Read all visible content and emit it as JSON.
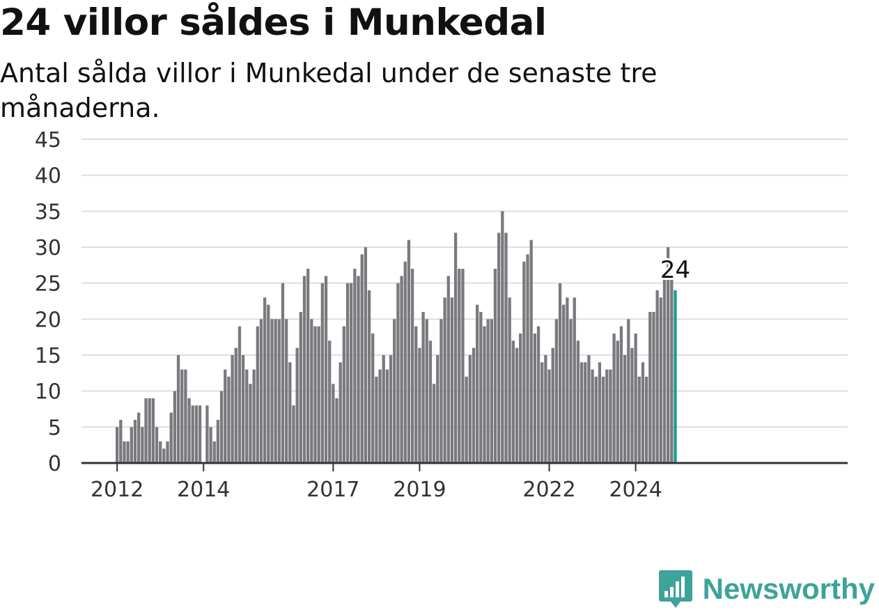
{
  "chart_data": {
    "type": "bar",
    "title": "24 villor såldes i Munkedal",
    "subtitle": "Antal sålda villor i Munkedal under de senaste tre månaderna.",
    "start_month": "2012-01",
    "values": [
      5,
      6,
      3,
      3,
      5,
      6,
      7,
      5,
      9,
      9,
      9,
      5,
      3,
      2,
      3,
      7,
      10,
      15,
      13,
      13,
      9,
      8,
      8,
      8,
      null,
      8,
      5,
      3,
      6,
      10,
      13,
      12,
      15,
      16,
      19,
      15,
      13,
      11,
      13,
      19,
      20,
      23,
      22,
      20,
      20,
      20,
      25,
      20,
      14,
      8,
      16,
      21,
      26,
      27,
      20,
      19,
      19,
      25,
      26,
      17,
      11,
      9,
      14,
      19,
      25,
      25,
      27,
      26,
      29,
      30,
      24,
      18,
      12,
      13,
      15,
      13,
      15,
      20,
      25,
      26,
      28,
      31,
      27,
      19,
      16,
      21,
      20,
      17,
      11,
      15,
      20,
      23,
      26,
      23,
      32,
      27,
      27,
      12,
      15,
      16,
      22,
      21,
      19,
      20,
      20,
      27,
      32,
      35,
      32,
      23,
      17,
      16,
      18,
      28,
      29,
      31,
      18,
      19,
      14,
      15,
      13,
      16,
      20,
      25,
      22,
      23,
      20,
      23,
      17,
      14,
      14,
      15,
      13,
      12,
      14,
      12,
      13,
      13,
      18,
      17,
      19,
      15,
      20,
      16,
      18,
      12,
      14,
      12,
      21,
      21,
      24,
      23,
      26,
      30,
      26,
      24
    ],
    "highlight": {
      "value": 24,
      "label": "24"
    },
    "yticks": [
      "0",
      "5",
      "10",
      "15",
      "20",
      "25",
      "30",
      "35",
      "40",
      "45"
    ],
    "ylim": [
      0,
      45
    ],
    "xticks": [
      {
        "label": "2012",
        "month": 0
      },
      {
        "label": "2014",
        "month": 24
      },
      {
        "label": "2017",
        "month": 60
      },
      {
        "label": "2019",
        "month": 84
      },
      {
        "label": "2022",
        "month": 120
      },
      {
        "label": "2024",
        "month": 144
      }
    ],
    "grid": true,
    "colors": {
      "bar": "#7a797e",
      "highlight": "#1b9a94"
    }
  },
  "brand": {
    "name": "Newsworthy",
    "icon": "newsworthy-logo-icon",
    "color": "#3ea39a"
  }
}
